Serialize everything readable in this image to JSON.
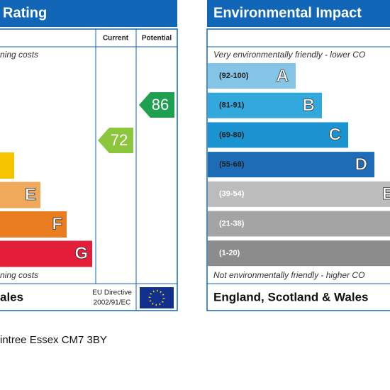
{
  "energy_panel": {
    "title": "Rating",
    "col_current": "Current",
    "col_potential": "Potential",
    "top_note": "ning costs",
    "bottom_note": "ning costs",
    "footer": "ales",
    "directive_line1": "EU Directive",
    "directive_line2": "2002/91/EC",
    "bands": [
      {
        "letter": "",
        "color": "#f5c400",
        "width": 20
      },
      {
        "letter": "E",
        "color": "#f0a85a",
        "width": 57
      },
      {
        "letter": "F",
        "color": "#ea7d1f",
        "width": 94
      },
      {
        "letter": "G",
        "color": "#e31d3a",
        "width": 130
      }
    ],
    "current": {
      "value": 72,
      "color": "#8cc63f"
    },
    "potential": {
      "value": 86,
      "color": "#1fa050"
    }
  },
  "environment_panel": {
    "title": "Environmental Impact",
    "top_note": "Very environmentally friendly - lower CO",
    "bottom_note": "Not environmentally friendly - higher CO",
    "footer": "England, Scotland & Wales",
    "bands": [
      {
        "range": "(92-100)",
        "letter": "A",
        "color": "#84c4e6"
      },
      {
        "range": "(81-91)",
        "letter": "B",
        "color": "#33a8dd"
      },
      {
        "range": "(69-80)",
        "letter": "C",
        "color": "#1b93d0"
      },
      {
        "range": "(55-68)",
        "letter": "D",
        "color": "#1e6cb6"
      },
      {
        "range": "(39-54)",
        "letter": "E",
        "color": "#bcbcbc"
      },
      {
        "range": "(21-38)",
        "letter": "",
        "color": "#a4a4a4"
      },
      {
        "range": "(1-20)",
        "letter": "",
        "color": "#8c8c8c"
      }
    ]
  },
  "address": "intree Essex CM7 3BY"
}
